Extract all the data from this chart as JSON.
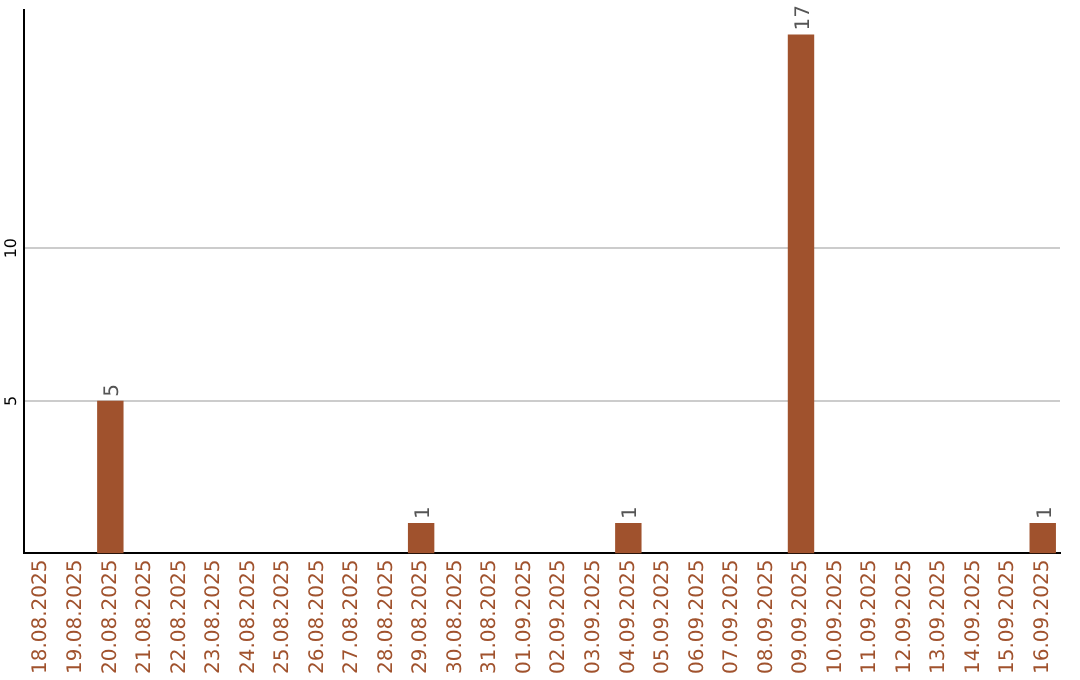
{
  "chart_data": {
    "type": "bar",
    "categories": [
      "18.08.2025",
      "19.08.2025",
      "20.08.2025",
      "21.08.2025",
      "22.08.2025",
      "23.08.2025",
      "24.08.2025",
      "25.08.2025",
      "26.08.2025",
      "27.08.2025",
      "28.08.2025",
      "29.08.2025",
      "30.08.2025",
      "31.08.2025",
      "01.09.2025",
      "02.09.2025",
      "03.09.2025",
      "04.09.2025",
      "05.09.2025",
      "06.09.2025",
      "07.09.2025",
      "08.09.2025",
      "09.09.2025",
      "10.09.2025",
      "11.09.2025",
      "12.09.2025",
      "13.09.2025",
      "14.09.2025",
      "15.09.2025",
      "16.09.2025"
    ],
    "values": [
      0,
      0,
      5,
      0,
      0,
      0,
      0,
      0,
      0,
      0,
      0,
      1,
      0,
      0,
      0,
      0,
      0,
      1,
      0,
      0,
      0,
      0,
      17,
      0,
      0,
      0,
      0,
      0,
      0,
      1
    ],
    "value_labels": [
      null,
      null,
      "5",
      null,
      null,
      null,
      null,
      null,
      null,
      null,
      null,
      "1",
      null,
      null,
      null,
      null,
      null,
      "1",
      null,
      null,
      null,
      null,
      "17",
      null,
      null,
      null,
      null,
      null,
      null,
      "1"
    ],
    "color": "#a0522d",
    "ylim": [
      0,
      17.8
    ],
    "yticks": [
      5,
      10
    ],
    "grid": "y",
    "legend": false
  }
}
